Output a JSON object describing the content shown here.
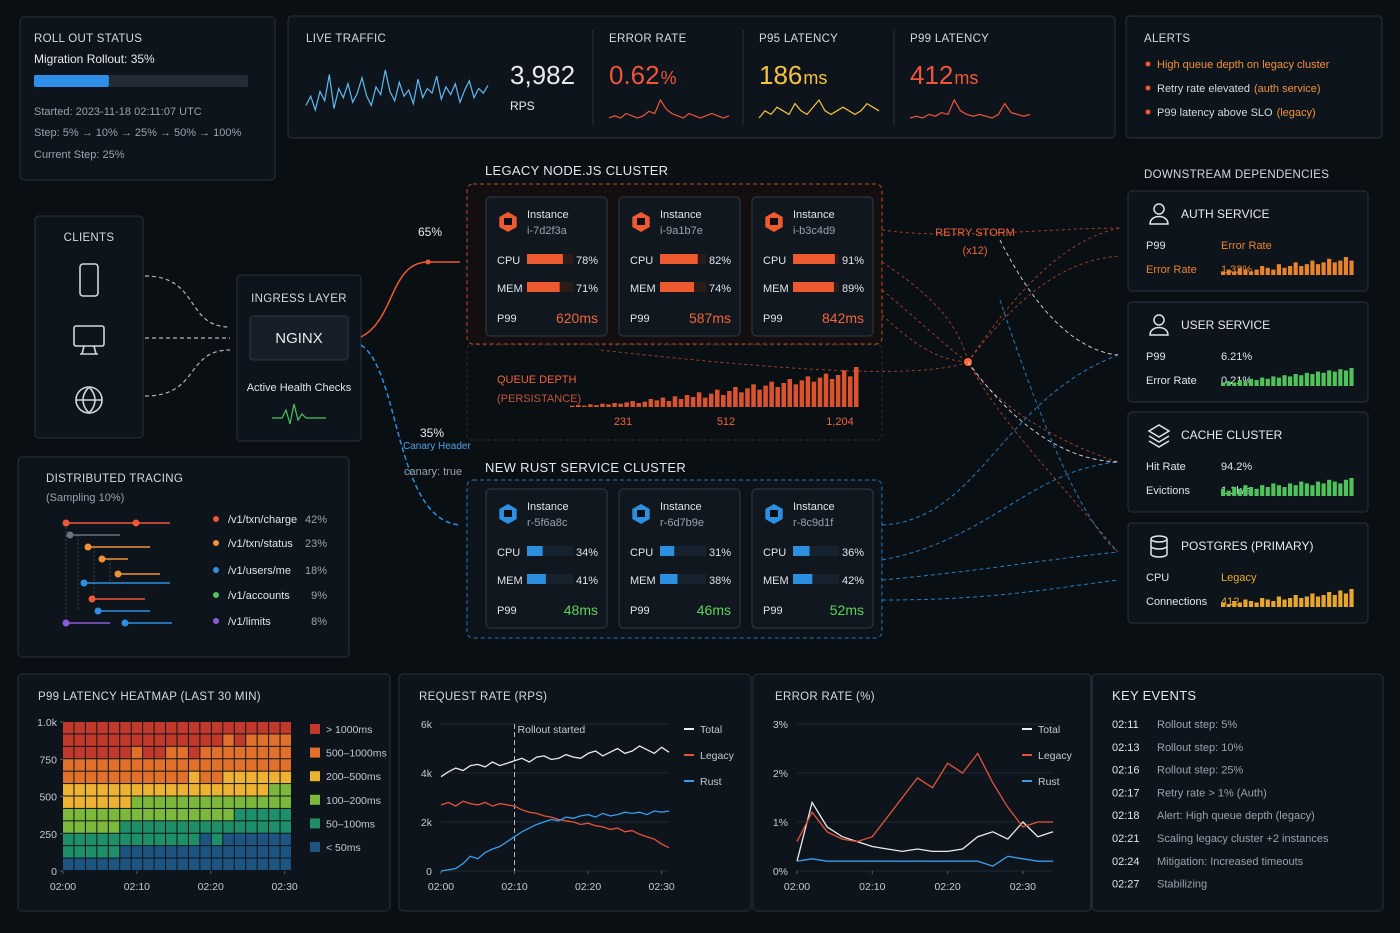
{
  "rollout": {
    "title": "ROLL OUT STATUS",
    "label": "Migration Rollout: 35%",
    "progress": 35,
    "started": "Started: 2023-11-18 02:11:07 UTC",
    "steps": "Step: 5% → 10% → 25% → 50% → 100%",
    "current": "Current Step: 25%"
  },
  "traffic": {
    "title": "LIVE TRAFFIC",
    "value": "3,982",
    "unit": "RPS",
    "color": "#5fb8f0",
    "spark": [
      52,
      58,
      49,
      61,
      55,
      72,
      50,
      63,
      57,
      66,
      54,
      60,
      70,
      58,
      52,
      64,
      59,
      75,
      61,
      55,
      67,
      58,
      62,
      53,
      69,
      57,
      63,
      60,
      71,
      56,
      64,
      59,
      66,
      54,
      62,
      68,
      57,
      63,
      60,
      65
    ]
  },
  "metrics": [
    {
      "title": "ERROR RATE",
      "value": "0.62",
      "unit": "%",
      "color": "#f0553a",
      "spark": [
        10,
        11,
        10,
        12,
        11,
        10,
        11,
        13,
        12,
        18,
        14,
        12,
        11,
        10,
        12,
        11,
        10,
        11,
        12,
        11,
        10,
        11
      ]
    },
    {
      "title": "P95 LATENCY",
      "value": "186",
      "unit": "ms",
      "color": "#f5c242",
      "spark": [
        10,
        12,
        11,
        13,
        12,
        11,
        14,
        12,
        11,
        13,
        15,
        12,
        11,
        12,
        13,
        12,
        11,
        12,
        14,
        13,
        12
      ]
    },
    {
      "title": "P99 LATENCY",
      "value": "412",
      "unit": "ms",
      "color": "#f0553a",
      "spark": [
        10,
        11,
        10,
        12,
        11,
        13,
        12,
        20,
        14,
        12,
        11,
        12,
        11,
        10,
        12,
        18,
        13,
        12,
        11,
        12
      ]
    }
  ],
  "alerts": {
    "title": "ALERTS",
    "items": [
      {
        "text": "High queue depth on legacy cluster"
      },
      {
        "text": "Retry rate elevated",
        "tag": "(auth service)"
      },
      {
        "text": "P99 latency above SLO",
        "tag": "(legacy)"
      }
    ]
  },
  "downstream": {
    "title": "DOWNSTREAM DEPENDENCIES",
    "services": [
      {
        "name": "AUTH SERVICE",
        "color": "#e8842e",
        "rows": [
          {
            "label": "P99",
            "value": "Error Rate"
          },
          {
            "label": "Error Rate",
            "value": "1.32%"
          }
        ],
        "spark": [
          2,
          3,
          2,
          4,
          3,
          2,
          3,
          5,
          4,
          3,
          6,
          4,
          5,
          7,
          5,
          6,
          8,
          6,
          7,
          9,
          7,
          8,
          10,
          8
        ]
      },
      {
        "name": "USER SERVICE",
        "color": "#4fc25a",
        "rows": [
          {
            "label": "P99",
            "value": "6.21%"
          },
          {
            "label": "Error Rate",
            "value": "0.21%"
          }
        ],
        "spark": [
          3,
          4,
          3,
          5,
          4,
          6,
          5,
          7,
          6,
          8,
          7,
          9,
          8,
          10,
          9,
          11,
          10,
          12,
          11,
          13,
          12,
          14,
          13,
          15
        ]
      },
      {
        "name": "CACHE CLUSTER",
        "color": "#4fc25a",
        "rows": [
          {
            "label": "Hit Rate",
            "value": "94.2%"
          },
          {
            "label": "Evictions",
            "value": "1.1k/s"
          }
        ],
        "spark": [
          4,
          3,
          5,
          4,
          6,
          5,
          4,
          6,
          5,
          7,
          6,
          5,
          7,
          6,
          8,
          7,
          6,
          8,
          7,
          9,
          8,
          7,
          9,
          10
        ]
      },
      {
        "name": "POSTGRES (PRIMARY)",
        "color": "#e8a62e",
        "rows": [
          {
            "label": "CPU",
            "value": "Legacy"
          },
          {
            "label": "Connections",
            "value": "412"
          }
        ],
        "spark": [
          3,
          2,
          4,
          3,
          5,
          4,
          3,
          6,
          5,
          4,
          7,
          5,
          6,
          8,
          6,
          7,
          9,
          7,
          8,
          10,
          8,
          11,
          9,
          12
        ]
      }
    ]
  },
  "clients": {
    "title": "CLIENTS"
  },
  "ingress": {
    "title": "INGRESS LAYER",
    "server": "NGINX",
    "health": "Active Health Checks"
  },
  "routing": {
    "legacy_share": "65%",
    "rust_share": "35%",
    "rust_rule": "Canary Header",
    "rust_header": "canary: true"
  },
  "legacy": {
    "title": "LEGACY NODE.JS CLUSTER",
    "color": "#ee5a2f",
    "p99_color": "#f0643a",
    "instance_label": "Instance",
    "metric_labels": [
      "CPU",
      "MEM",
      "P99"
    ],
    "instances": [
      {
        "id": "i-7d2f3a",
        "cpu": 78,
        "cpu_label": "78%",
        "mem": 71,
        "mem_label": "71%",
        "p99": "620ms"
      },
      {
        "id": "i-9a1b7e",
        "cpu": 82,
        "cpu_label": "82%",
        "mem": 74,
        "mem_label": "74%",
        "p99": "587ms"
      },
      {
        "id": "i-b3c4d9",
        "cpu": 91,
        "cpu_label": "91%",
        "mem": 89,
        "mem_label": "89%",
        "p99": "842ms"
      }
    ]
  },
  "retry": {
    "title": "RETRY STORM",
    "count": "(x12)"
  },
  "queue": {
    "title": "QUEUE DEPTH",
    "subtitle": "(PERSISTANCE)",
    "labels": [
      "231",
      "512",
      "1,204"
    ],
    "values": [
      2,
      3,
      2,
      4,
      3,
      5,
      4,
      6,
      5,
      7,
      9,
      6,
      8,
      12,
      10,
      14,
      9,
      16,
      12,
      18,
      15,
      22,
      14,
      20,
      26,
      18,
      24,
      30,
      22,
      28,
      34,
      26,
      32,
      38,
      30,
      36,
      42,
      34,
      40,
      46,
      38,
      44,
      50,
      42,
      48,
      55,
      46,
      60
    ]
  },
  "rust": {
    "title": "NEW RUST SERVICE CLUSTER",
    "color": "#2d8fe0",
    "p99_color": "#5ed35a",
    "instance_label": "Instance",
    "metric_labels": [
      "CPU",
      "MEM",
      "P99"
    ],
    "instances": [
      {
        "id": "r-5f6a8c",
        "cpu": 34,
        "cpu_label": "34%",
        "mem": 41,
        "mem_label": "41%",
        "p99": "48ms"
      },
      {
        "id": "r-6d7b9e",
        "cpu": 31,
        "cpu_label": "31%",
        "mem": 38,
        "mem_label": "38%",
        "p99": "46ms"
      },
      {
        "id": "r-8c9d1f",
        "cpu": 36,
        "cpu_label": "36%",
        "mem": 42,
        "mem_label": "42%",
        "p99": "52ms"
      }
    ]
  },
  "tracing": {
    "title": "DISTRIBUTED TRACING",
    "subtitle": "(Sampling 10%)",
    "routes": [
      {
        "name": "/v1/txn/charge",
        "share": "42%",
        "color": "#f0553a"
      },
      {
        "name": "/v1/txn/status",
        "share": "23%",
        "color": "#f0913a"
      },
      {
        "name": "/v1/users/me",
        "share": "18%",
        "color": "#2d8fe0"
      },
      {
        "name": "/v1/accounts",
        "share": "9%",
        "color": "#4fc25a"
      },
      {
        "name": "/v1/limits",
        "share": "8%",
        "color": "#8a5bd6"
      }
    ]
  },
  "heatmap": {
    "title": "P99 LATENCY HEATMAP (LAST 30 MIN)",
    "ylim": [
      0,
      1000
    ],
    "yticks": [
      0,
      250,
      500,
      750,
      {
        "value": 1000,
        "label": "1.0k"
      }
    ],
    "xlim": [
      0,
      31
    ],
    "xticks": [
      {
        "value": 0,
        "label": "02:00"
      },
      {
        "value": 10,
        "label": "02:10"
      },
      {
        "value": 20,
        "label": "02:20"
      },
      {
        "value": 30,
        "label": "02:30"
      }
    ],
    "legend": [
      {
        "label": "> 1000ms",
        "color": "#c0392b"
      },
      {
        "label": "500–1000ms",
        "color": "#e0702a"
      },
      {
        "label": "200–500ms",
        "color": "#eeb233"
      },
      {
        "label": "100–200ms",
        "color": "#7bb83c"
      },
      {
        "label": "50–100ms",
        "color": "#1f8f6a"
      },
      {
        "label": "< 50ms",
        "color": "#1e5580"
      }
    ],
    "cells": [
      [
        0,
        0,
        0,
        0,
        0,
        0,
        0,
        0,
        0,
        0,
        0,
        0,
        0,
        0,
        0,
        0,
        0,
        0,
        0,
        0
      ],
      [
        0,
        0,
        0,
        0,
        0,
        0,
        0,
        0,
        0,
        0,
        0,
        0,
        0,
        0,
        1,
        0,
        1,
        1,
        1,
        1
      ],
      [
        0,
        0,
        0,
        0,
        0,
        0,
        1,
        0,
        0,
        1,
        1,
        0,
        1,
        1,
        1,
        1,
        1,
        1,
        1,
        1
      ],
      [
        1,
        1,
        1,
        1,
        1,
        1,
        1,
        1,
        1,
        1,
        1,
        1,
        1,
        1,
        1,
        1,
        1,
        1,
        1,
        1
      ],
      [
        1,
        1,
        1,
        1,
        1,
        1,
        1,
        1,
        1,
        1,
        1,
        2,
        1,
        1,
        2,
        2,
        2,
        2,
        2,
        2
      ],
      [
        2,
        2,
        2,
        2,
        2,
        2,
        2,
        2,
        2,
        2,
        2,
        2,
        2,
        2,
        2,
        2,
        2,
        2,
        3,
        3
      ],
      [
        2,
        2,
        2,
        2,
        2,
        2,
        3,
        3,
        3,
        3,
        3,
        3,
        3,
        3,
        3,
        3,
        3,
        3,
        3,
        3
      ],
      [
        3,
        3,
        3,
        3,
        3,
        3,
        3,
        3,
        3,
        3,
        3,
        3,
        3,
        3,
        3,
        4,
        4,
        4,
        4,
        4
      ],
      [
        3,
        3,
        3,
        3,
        3,
        4,
        4,
        4,
        4,
        4,
        4,
        4,
        4,
        4,
        4,
        4,
        4,
        4,
        4,
        4
      ],
      [
        4,
        4,
        4,
        4,
        4,
        4,
        4,
        4,
        4,
        4,
        4,
        4,
        5,
        4,
        5,
        5,
        5,
        5,
        5,
        5
      ],
      [
        4,
        4,
        4,
        4,
        4,
        5,
        5,
        5,
        5,
        5,
        5,
        5,
        5,
        5,
        5,
        5,
        5,
        5,
        5,
        5
      ],
      [
        5,
        5,
        5,
        5,
        5,
        5,
        5,
        5,
        5,
        5,
        5,
        5,
        5,
        5,
        5,
        5,
        5,
        5,
        5,
        5
      ]
    ]
  },
  "request_rate": {
    "title": "REQUEST RATE (RPS)",
    "grid": true,
    "xlim": [
      0,
      31
    ],
    "xticks": [
      {
        "value": 0,
        "label": "02:00"
      },
      {
        "value": 10,
        "label": "02:10"
      },
      {
        "value": 20,
        "label": "02:20"
      },
      {
        "value": 30,
        "label": "02:30"
      }
    ],
    "ylim": [
      0,
      6000
    ],
    "yticks": [
      0,
      {
        "value": 2000,
        "label": "2k"
      },
      {
        "value": 4000,
        "label": "4k"
      },
      {
        "value": 6000,
        "label": "6k"
      }
    ],
    "annotation": {
      "x": 10,
      "text": "Rollout started"
    },
    "x": [
      0,
      1,
      2,
      3,
      4,
      5,
      6,
      7,
      8,
      9,
      10,
      11,
      12,
      13,
      14,
      15,
      16,
      17,
      18,
      19,
      20,
      21,
      22,
      23,
      24,
      25,
      26,
      27,
      28,
      29,
      30,
      31
    ],
    "series": [
      {
        "name": "Total",
        "color": "#ececec",
        "values": [
          3850,
          4050,
          4200,
          4100,
          4300,
          4350,
          4250,
          4450,
          4300,
          4400,
          4500,
          4600,
          4450,
          4650,
          4700,
          4550,
          4600,
          4750,
          4650,
          4600,
          4800,
          4900,
          4700,
          4850,
          5000,
          4800,
          4900,
          5100,
          4950,
          4800,
          5050,
          4850
        ]
      },
      {
        "name": "Legacy",
        "color": "#e5533a",
        "values": [
          2700,
          2800,
          2650,
          2850,
          2750,
          2700,
          2800,
          2650,
          2750,
          2700,
          2650,
          2500,
          2400,
          2350,
          2250,
          2200,
          2100,
          2050,
          2000,
          1900,
          1950,
          1850,
          1800,
          1700,
          1750,
          1600,
          1650,
          1500,
          1400,
          1300,
          1100,
          950
        ]
      },
      {
        "name": "Rust",
        "color": "#3a9be8",
        "values": [
          0,
          50,
          100,
          300,
          600,
          500,
          750,
          900,
          1000,
          1200,
          1400,
          1600,
          1750,
          1900,
          2000,
          2100,
          2050,
          2200,
          2150,
          2250,
          2300,
          2200,
          2350,
          2250,
          2300,
          2400,
          2350,
          2400,
          2300,
          2450,
          2400,
          2450
        ]
      }
    ]
  },
  "error_rate": {
    "title": "ERROR RATE (%)",
    "grid": true,
    "xlim": [
      0,
      34
    ],
    "xticks": [
      {
        "value": 0,
        "label": "02:00"
      },
      {
        "value": 10,
        "label": "02:10"
      },
      {
        "value": 20,
        "label": "02:20"
      },
      {
        "value": 30,
        "label": "02:30"
      }
    ],
    "ylim": [
      0,
      3
    ],
    "yticks": [
      {
        "value": 0,
        "label": "0%"
      },
      {
        "value": 1,
        "label": "1%"
      },
      {
        "value": 2,
        "label": "2%"
      },
      {
        "value": 3,
        "label": "3%"
      }
    ],
    "x": [
      0,
      2,
      4,
      6,
      8,
      10,
      12,
      14,
      16,
      18,
      20,
      22,
      24,
      26,
      28,
      30,
      32,
      34
    ],
    "series": [
      {
        "name": "Total",
        "color": "#ececec",
        "values": [
          0.2,
          1.4,
          0.9,
          0.7,
          0.6,
          0.5,
          0.45,
          0.4,
          0.45,
          0.4,
          0.4,
          0.45,
          0.7,
          0.8,
          0.65,
          1.0,
          0.7,
          0.8
        ]
      },
      {
        "name": "Legacy",
        "color": "#e5533a",
        "values": [
          0.6,
          1.2,
          0.8,
          0.65,
          0.6,
          0.7,
          1.1,
          1.5,
          1.9,
          1.7,
          2.2,
          2.0,
          2.4,
          1.8,
          1.3,
          0.9,
          1.0,
          1.0
        ]
      },
      {
        "name": "Rust",
        "color": "#3a9be8",
        "values": [
          0.2,
          0.25,
          0.2,
          0.2,
          0.2,
          0.2,
          0.2,
          0.2,
          0.2,
          0.2,
          0.2,
          0.2,
          0.2,
          0.1,
          0.3,
          0.25,
          0.2,
          0.2
        ]
      }
    ]
  },
  "events": {
    "title": "KEY EVENTS",
    "items": [
      {
        "time": "02:11",
        "text": "Rollout step: 5%"
      },
      {
        "time": "02:13",
        "text": "Rollout step: 10%"
      },
      {
        "time": "02:16",
        "text": "Rollout step: 25%"
      },
      {
        "time": "02:17",
        "text": "Retry rate > 1% (Auth)"
      },
      {
        "time": "02:18",
        "text": "Alert: High queue depth (legacy)"
      },
      {
        "time": "02:21",
        "text": "Scaling legacy cluster +2 instances"
      },
      {
        "time": "02:24",
        "text": "Mitigation: Increased timeouts"
      },
      {
        "time": "02:27",
        "text": "Stabilizing"
      }
    ]
  }
}
